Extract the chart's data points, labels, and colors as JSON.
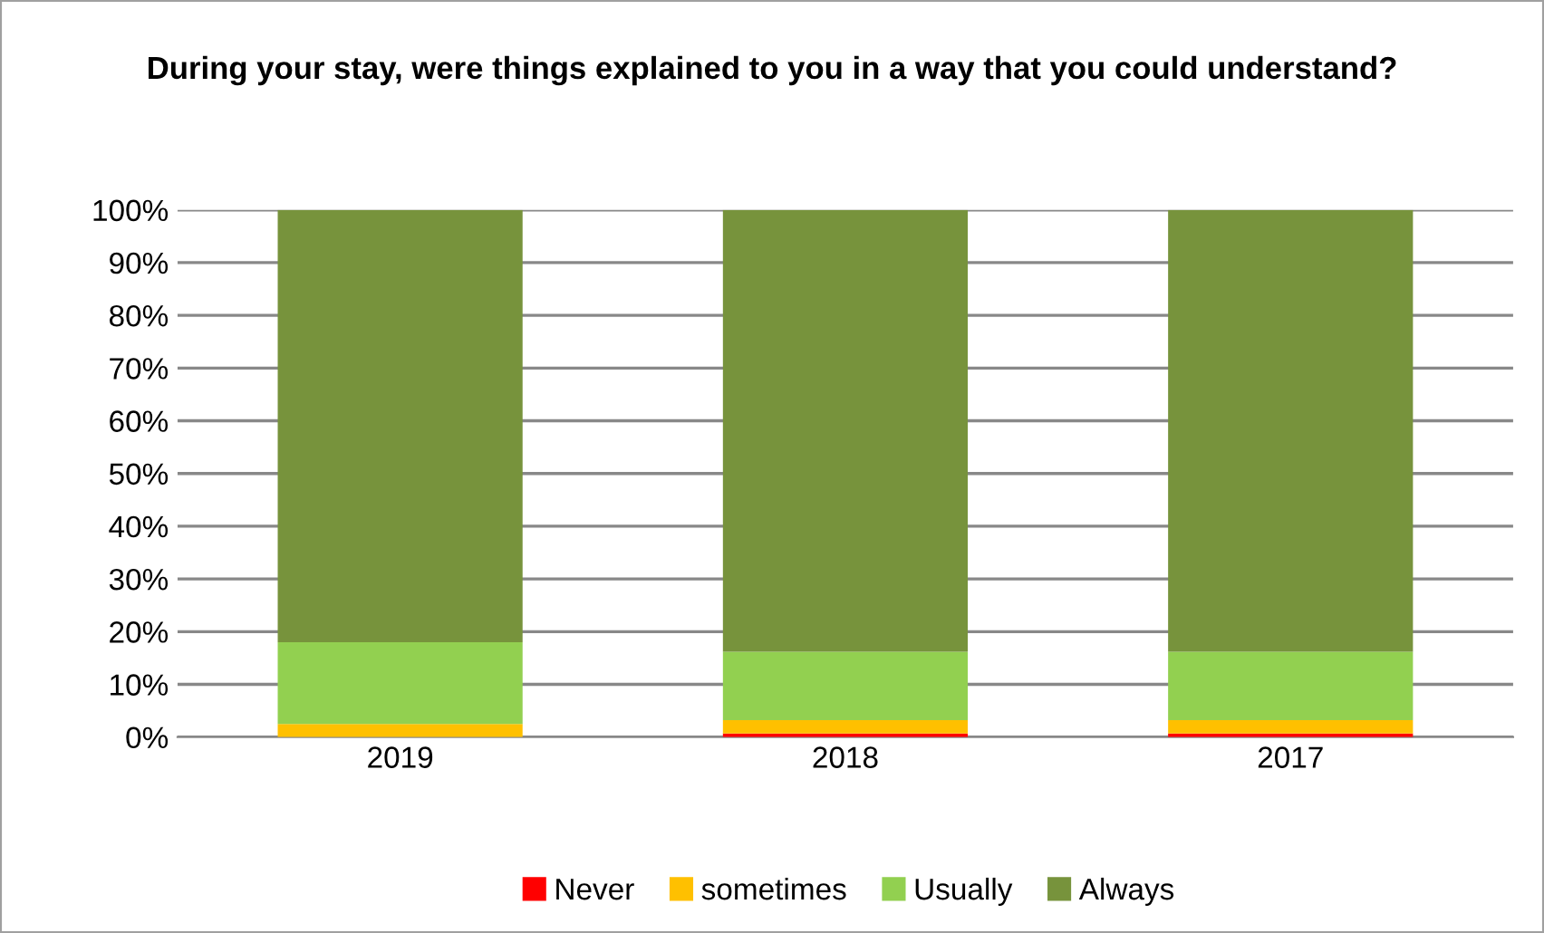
{
  "chart_data": {
    "type": "bar",
    "stacked": true,
    "title": "During your stay, were things explained to you in a way that you could understand?",
    "categories": [
      "2019",
      "2018",
      "2017"
    ],
    "series": [
      {
        "name": "Never",
        "color": "#ff0000",
        "values": [
          0,
          0.7,
          0.7
        ]
      },
      {
        "name": "sometimes",
        "color": "#ffc000",
        "values": [
          2.5,
          2.5,
          2.5
        ]
      },
      {
        "name": "Usually",
        "color": "#92d050",
        "values": [
          15.5,
          13,
          13
        ]
      },
      {
        "name": "Always",
        "color": "#77933c",
        "values": [
          82,
          83.8,
          83.8
        ]
      }
    ],
    "ylim": [
      0,
      100
    ],
    "yticks": [
      {
        "value": 0,
        "label": "0%"
      },
      {
        "value": 10,
        "label": "10%"
      },
      {
        "value": 20,
        "label": "20%"
      },
      {
        "value": 30,
        "label": "30%"
      },
      {
        "value": 40,
        "label": "40%"
      },
      {
        "value": 50,
        "label": "50%"
      },
      {
        "value": 60,
        "label": "60%"
      },
      {
        "value": 70,
        "label": "70%"
      },
      {
        "value": 80,
        "label": "80%"
      },
      {
        "value": 90,
        "label": "90%"
      },
      {
        "value": 100,
        "label": "100%"
      }
    ],
    "grid": "y",
    "legend": "bottom"
  }
}
